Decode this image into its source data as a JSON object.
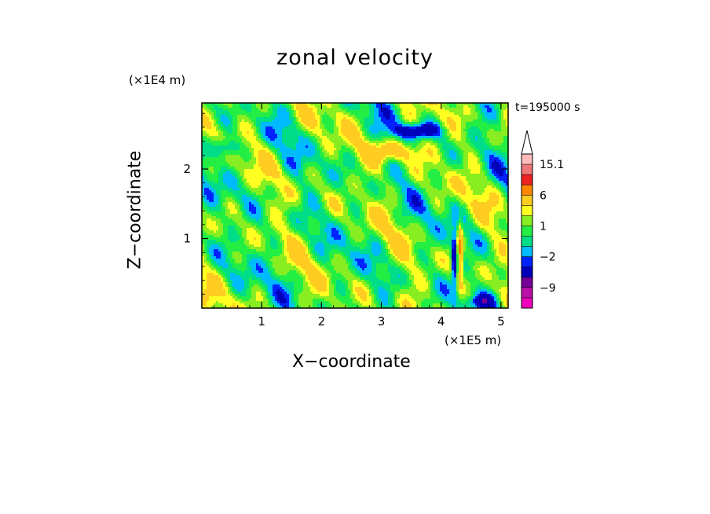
{
  "chart_data": {
    "type": "heatmap",
    "title": "zonal velocity",
    "xlabel": "X−coordinate",
    "ylabel": "Z−coordinate",
    "x_unit": "(×1E5 m)",
    "y_unit": "(×1E4 m)",
    "annotation": "t=195000 s",
    "xlim": [
      0,
      5.12
    ],
    "ylim": [
      0,
      2.95
    ],
    "x_ticks": [
      1,
      2,
      3,
      4,
      5
    ],
    "x_tick_labels": [
      "1",
      "2",
      "3",
      "4",
      "5"
    ],
    "y_ticks": [
      1,
      2
    ],
    "y_tick_labels": [
      "1",
      "2"
    ],
    "colorbar": {
      "levels": [
        -15,
        -12,
        -9,
        -6,
        -3,
        -2,
        -1,
        0,
        1,
        2,
        3,
        6,
        9,
        12,
        15.1
      ],
      "tick_labels": [
        {
          "value": 15.1,
          "label": "15.1"
        },
        {
          "value": 6,
          "label": "6"
        },
        {
          "value": 1,
          "label": "1"
        },
        {
          "value": -2,
          "label": "−2"
        },
        {
          "value": -9,
          "label": "−9"
        }
      ],
      "colors": [
        "#ee00bb",
        "#bb11aa",
        "#770099",
        "#0000bb",
        "#0022ff",
        "#00bbff",
        "#00dd88",
        "#22ee44",
        "#88ee22",
        "#ffff22",
        "#ffcc22",
        "#ff8800",
        "#ee2222",
        "#ee7777",
        "#ffbbbb"
      ],
      "extend_top": true
    }
  }
}
